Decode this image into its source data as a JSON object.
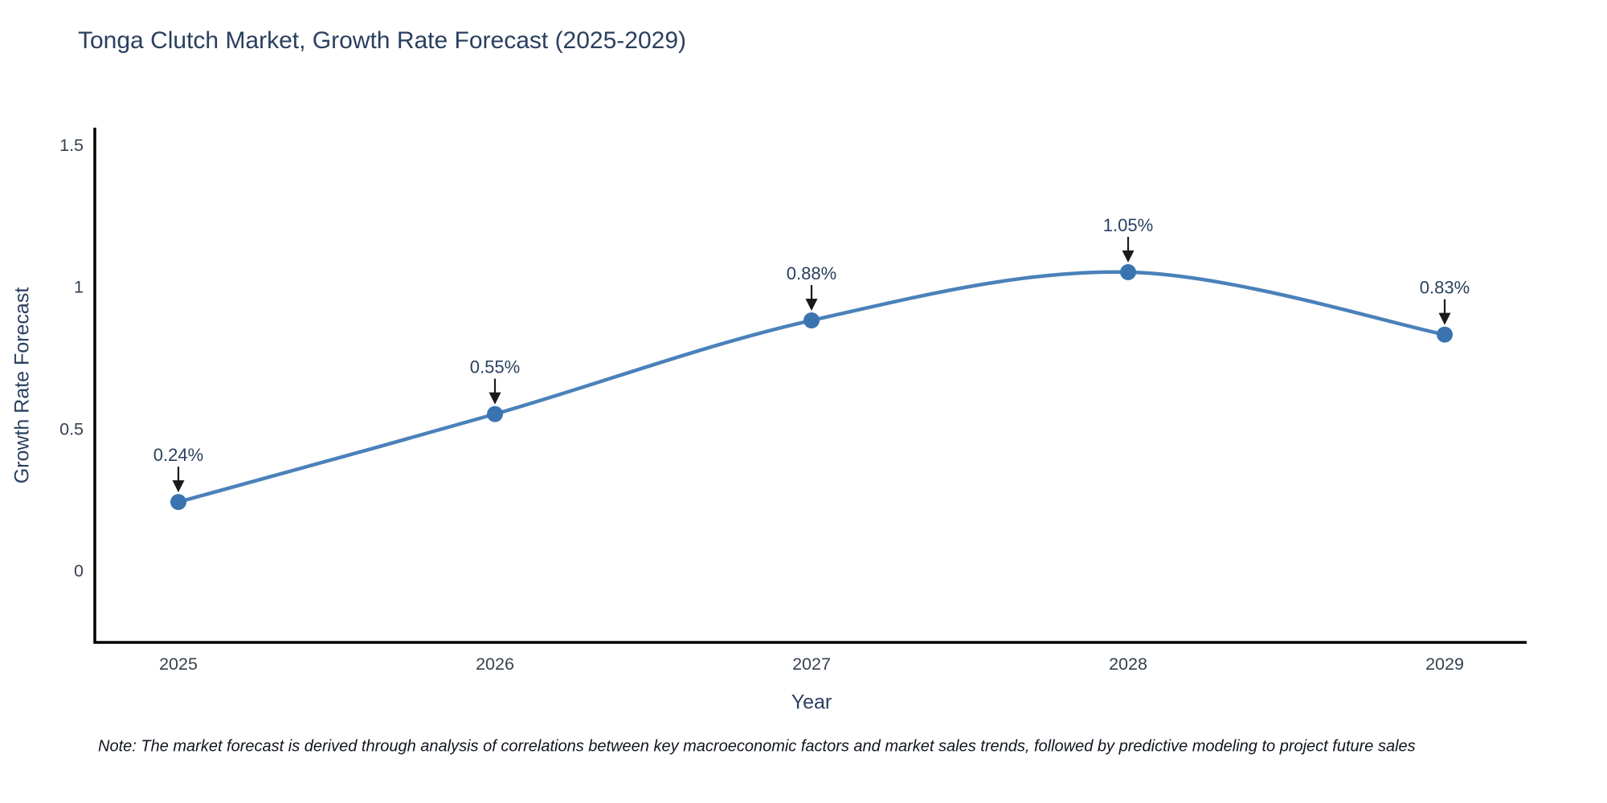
{
  "title": "Tonga Clutch Market, Growth Rate Forecast (2025-2029)",
  "note": "Note: The market forecast is derived through analysis of correlations between key macroeconomic factors and market sales trends, followed by predictive modeling to project future sales",
  "chart_data": {
    "type": "line",
    "title": "Tonga Clutch Market, Growth Rate Forecast (2025-2029)",
    "categories": [
      "2025",
      "2026",
      "2027",
      "2028",
      "2029"
    ],
    "values": [
      0.24,
      0.55,
      0.88,
      1.05,
      0.83
    ],
    "point_labels": [
      "0.24%",
      "0.55%",
      "0.88%",
      "1.05%",
      "0.83%"
    ],
    "xlabel": "Year",
    "ylabel": "Growth Rate Forecast",
    "yticks": [
      0,
      0.5,
      1,
      1.5
    ],
    "ytick_labels": [
      "0",
      "0.5",
      "1",
      "1.5"
    ],
    "ylim": [
      -0.26,
      1.56
    ],
    "line_shape": "spline",
    "grid": false,
    "legend": "none",
    "colors": {
      "line": "#4a81ba",
      "marker": "#3a74b0",
      "axis": "#000000",
      "text": "#2a3f5f",
      "tick_text": "#36414f",
      "annotation": "#1a1a1a"
    }
  }
}
